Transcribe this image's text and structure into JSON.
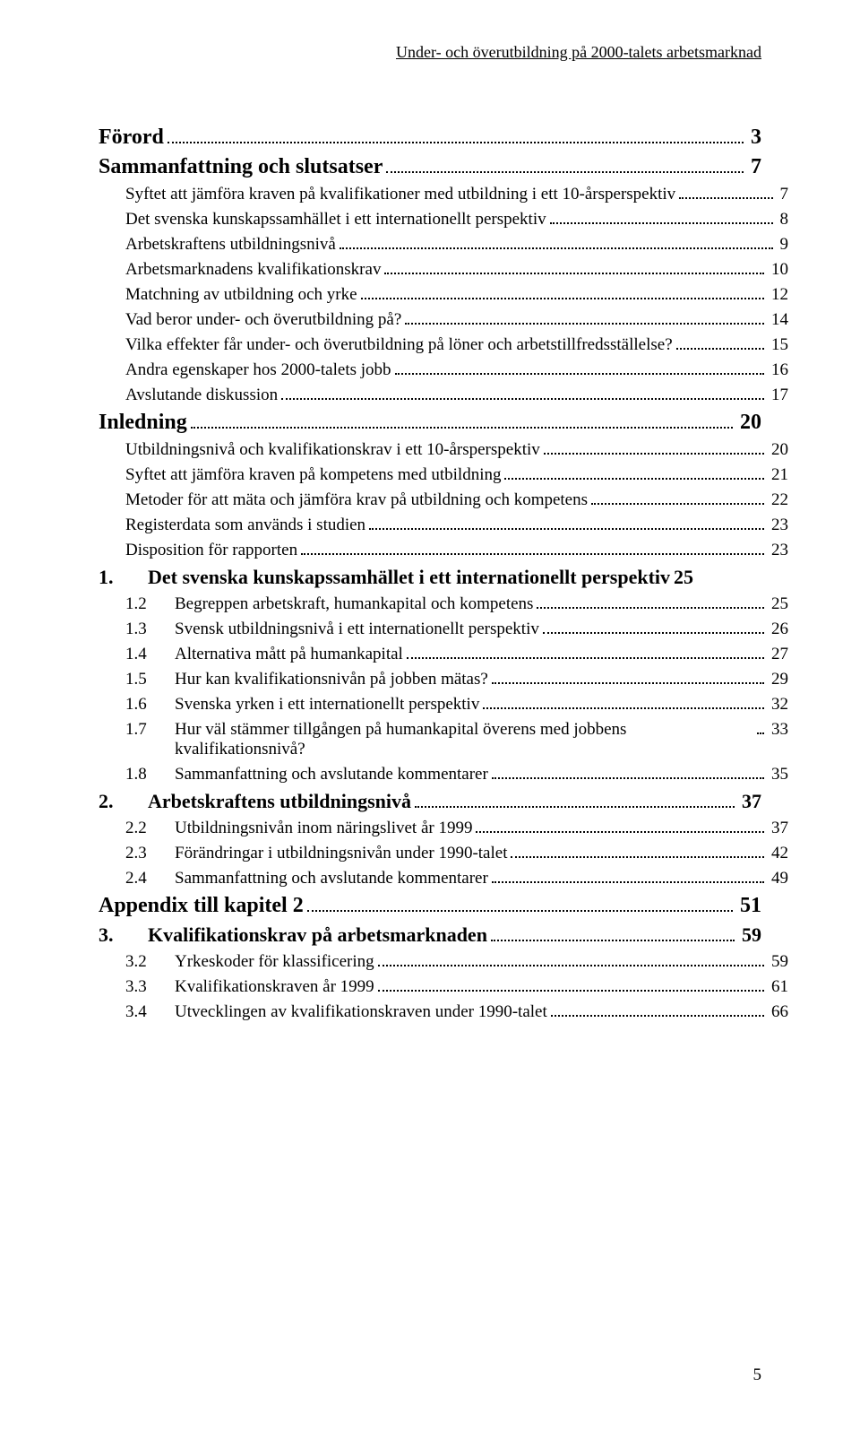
{
  "running_header": "Under- och överutbildning på 2000-talets arbetsmarknad",
  "page_number": "5",
  "toc": [
    {
      "level": "lvl0",
      "bold": true,
      "num": "",
      "label": "Förord",
      "page": "3"
    },
    {
      "level": "lvl0",
      "bold": true,
      "num": "",
      "label": "Sammanfattning och slutsatser",
      "page": "7"
    },
    {
      "level": "lvl1",
      "bold": false,
      "num": "",
      "label": "Syftet att jämföra kraven på kvalifikationer med utbildning i ett 10-årsperspektiv",
      "page": "7"
    },
    {
      "level": "lvl1",
      "bold": false,
      "num": "",
      "label": "Det svenska kunskapssamhället i ett internationellt perspektiv",
      "page": "8"
    },
    {
      "level": "lvl1",
      "bold": false,
      "num": "",
      "label": "Arbetskraftens utbildningsnivå",
      "page": "9"
    },
    {
      "level": "lvl1",
      "bold": false,
      "num": "",
      "label": "Arbetsmarknadens kvalifikationskrav",
      "page": "10"
    },
    {
      "level": "lvl1",
      "bold": false,
      "num": "",
      "label": "Matchning av utbildning och yrke",
      "page": "12"
    },
    {
      "level": "lvl1",
      "bold": false,
      "num": "",
      "label": "Vad beror under- och överutbildning på?",
      "page": "14"
    },
    {
      "level": "lvl1",
      "bold": false,
      "num": "",
      "label": "Vilka effekter får under- och överutbildning på löner och arbetstillfredsställelse?",
      "page": "15"
    },
    {
      "level": "lvl1",
      "bold": false,
      "num": "",
      "label": "Andra egenskaper hos 2000-talets jobb",
      "page": "16"
    },
    {
      "level": "lvl1",
      "bold": false,
      "num": "",
      "label": "Avslutande diskussion",
      "page": "17"
    },
    {
      "level": "lvl0",
      "bold": true,
      "num": "",
      "label": "Inledning",
      "page": "20"
    },
    {
      "level": "lvl1",
      "bold": false,
      "num": "",
      "label": "Utbildningsnivå och kvalifikationskrav i ett 10-årsperspektiv",
      "page": "20"
    },
    {
      "level": "lvl1",
      "bold": false,
      "num": "",
      "label": "Syftet att jämföra kraven på kompetens med utbildning",
      "page": "21"
    },
    {
      "level": "lvl1",
      "bold": false,
      "num": "",
      "label": "Metoder för att mäta och jämföra krav på utbildning och kompetens",
      "page": "22"
    },
    {
      "level": "lvl1",
      "bold": false,
      "num": "",
      "label": "Registerdata som används i studien",
      "page": "23"
    },
    {
      "level": "lvl1",
      "bold": false,
      "num": "",
      "label": "Disposition för rapporten",
      "page": "23"
    },
    {
      "level": "lvl1b",
      "bold": true,
      "num": "1.",
      "label": "Det svenska kunskapssamhället i ett internationellt perspektiv",
      "page": "25",
      "noleader": true
    },
    {
      "level": "lvl2",
      "bold": false,
      "num": "1.2",
      "label": "Begreppen arbetskraft, humankapital och kompetens",
      "page": "25"
    },
    {
      "level": "lvl2",
      "bold": false,
      "num": "1.3",
      "label": "Svensk utbildningsnivå i ett internationellt perspektiv",
      "page": "26"
    },
    {
      "level": "lvl2",
      "bold": false,
      "num": "1.4",
      "label": "Alternativa mått på humankapital",
      "page": "27"
    },
    {
      "level": "lvl2",
      "bold": false,
      "num": "1.5",
      "label": "Hur kan kvalifikationsnivån på jobben mätas?",
      "page": "29"
    },
    {
      "level": "lvl2",
      "bold": false,
      "num": "1.6",
      "label": "Svenska yrken i ett internationellt perspektiv",
      "page": "32"
    },
    {
      "level": "lvl2",
      "bold": false,
      "num": "1.7",
      "label": "Hur väl stämmer tillgången på humankapital överens med jobbens kvalifikationsnivå?",
      "page": "33"
    },
    {
      "level": "lvl2",
      "bold": false,
      "num": "1.8",
      "label": "Sammanfattning och avslutande kommentarer",
      "page": "35"
    },
    {
      "level": "lvl1b",
      "bold": true,
      "num": "2.",
      "label": "Arbetskraftens utbildningsnivå",
      "page": "37"
    },
    {
      "level": "lvl2",
      "bold": false,
      "num": "2.2",
      "label": "Utbildningsnivån inom näringslivet år 1999",
      "page": "37"
    },
    {
      "level": "lvl2",
      "bold": false,
      "num": "2.3",
      "label": "Förändringar i utbildningsnivån under 1990-talet",
      "page": "42"
    },
    {
      "level": "lvl2",
      "bold": false,
      "num": "2.4",
      "label": "Sammanfattning och avslutande kommentarer",
      "page": "49"
    },
    {
      "level": "lvl0",
      "bold": true,
      "num": "",
      "label": "Appendix till kapitel 2",
      "page": "51"
    },
    {
      "level": "lvl1b",
      "bold": true,
      "num": "3.",
      "label": "Kvalifikationskrav på arbetsmarknaden",
      "page": "59"
    },
    {
      "level": "lvl2",
      "bold": false,
      "num": "3.2",
      "label": "Yrkeskoder för klassificering",
      "page": "59"
    },
    {
      "level": "lvl2",
      "bold": false,
      "num": "3.3",
      "label": "Kvalifikationskraven år 1999",
      "page": "61"
    },
    {
      "level": "lvl2",
      "bold": false,
      "num": "3.4",
      "label": "Utvecklingen av kvalifikationskraven under 1990-talet",
      "page": "66"
    }
  ]
}
